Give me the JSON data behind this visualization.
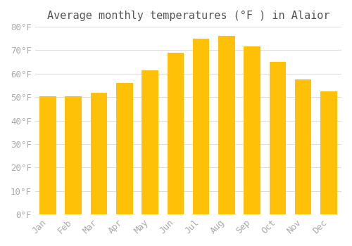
{
  "title": "Average monthly temperatures (°F ) in Alaior",
  "months": [
    "Jan",
    "Feb",
    "Mar",
    "Apr",
    "May",
    "Jun",
    "Jul",
    "Aug",
    "Sep",
    "Oct",
    "Nov",
    "Dec"
  ],
  "values": [
    50.5,
    50.5,
    52,
    56,
    61.5,
    69,
    75,
    76,
    71.5,
    65,
    57.5,
    52.5
  ],
  "bar_color_top": "#FFC107",
  "bar_color_bottom": "#FFB300",
  "background_color": "#FFFFFF",
  "ylim": [
    0,
    80
  ],
  "yticks": [
    0,
    10,
    20,
    30,
    40,
    50,
    60,
    70,
    80
  ],
  "grid_color": "#DDDDDD",
  "title_fontsize": 11,
  "tick_fontsize": 9,
  "font_color": "#AAAAAA"
}
